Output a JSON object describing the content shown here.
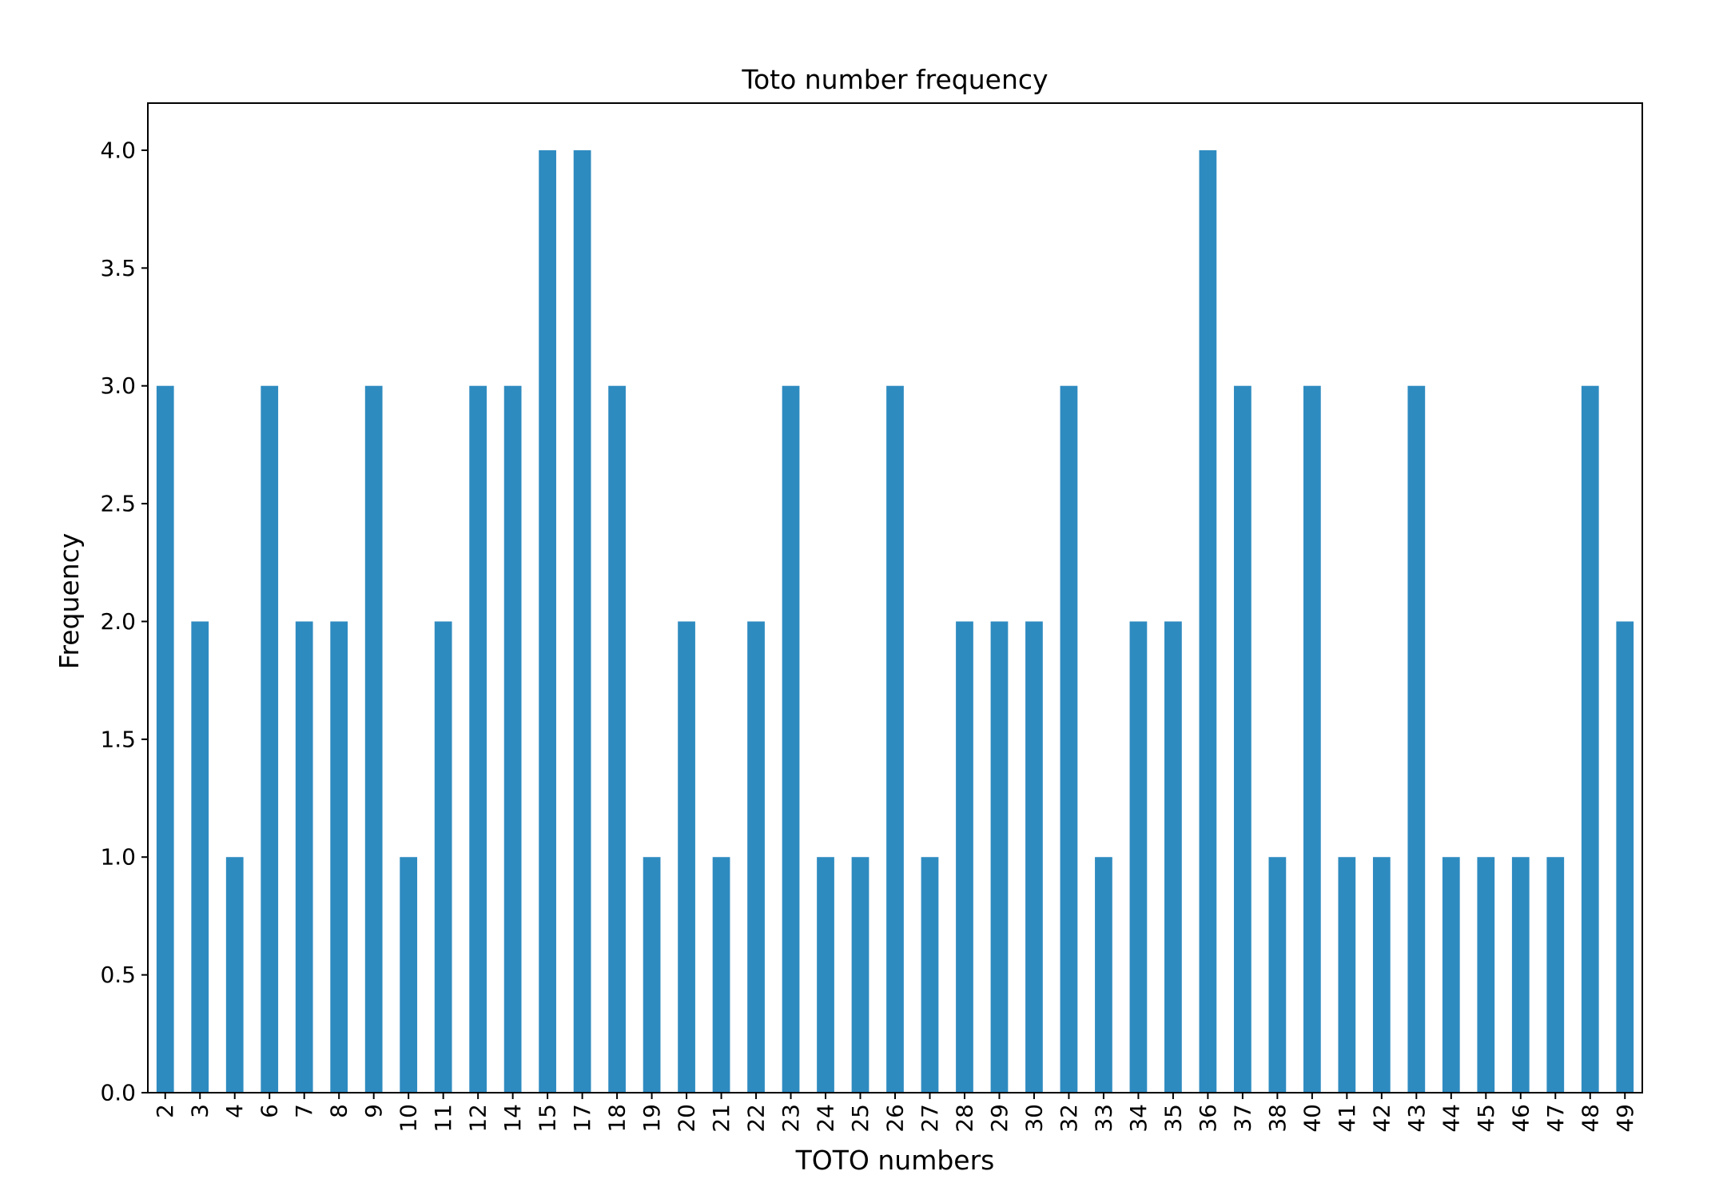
{
  "chart_data": {
    "type": "bar",
    "title": "Toto number frequency",
    "xlabel": "TOTO numbers",
    "ylabel": "Frequency",
    "ylim": [
      0,
      4.2
    ],
    "yticks": [
      "0.0",
      "0.5",
      "1.0",
      "1.5",
      "2.0",
      "2.5",
      "3.0",
      "3.5",
      "4.0"
    ],
    "categories": [
      "2",
      "3",
      "4",
      "6",
      "7",
      "8",
      "9",
      "10",
      "11",
      "12",
      "14",
      "15",
      "17",
      "18",
      "19",
      "20",
      "21",
      "22",
      "23",
      "24",
      "25",
      "26",
      "27",
      "28",
      "29",
      "30",
      "32",
      "33",
      "34",
      "35",
      "36",
      "37",
      "38",
      "40",
      "41",
      "42",
      "43",
      "44",
      "45",
      "46",
      "47",
      "48",
      "49"
    ],
    "values": [
      3,
      2,
      1,
      3,
      2,
      2,
      3,
      1,
      2,
      3,
      3,
      4,
      4,
      3,
      1,
      2,
      1,
      2,
      3,
      1,
      1,
      3,
      1,
      2,
      2,
      2,
      3,
      1,
      2,
      2,
      4,
      3,
      1,
      3,
      1,
      1,
      3,
      1,
      1,
      1,
      1,
      3,
      2
    ],
    "bar_color": "#2e8bc0",
    "grid": false,
    "legend": "none"
  }
}
